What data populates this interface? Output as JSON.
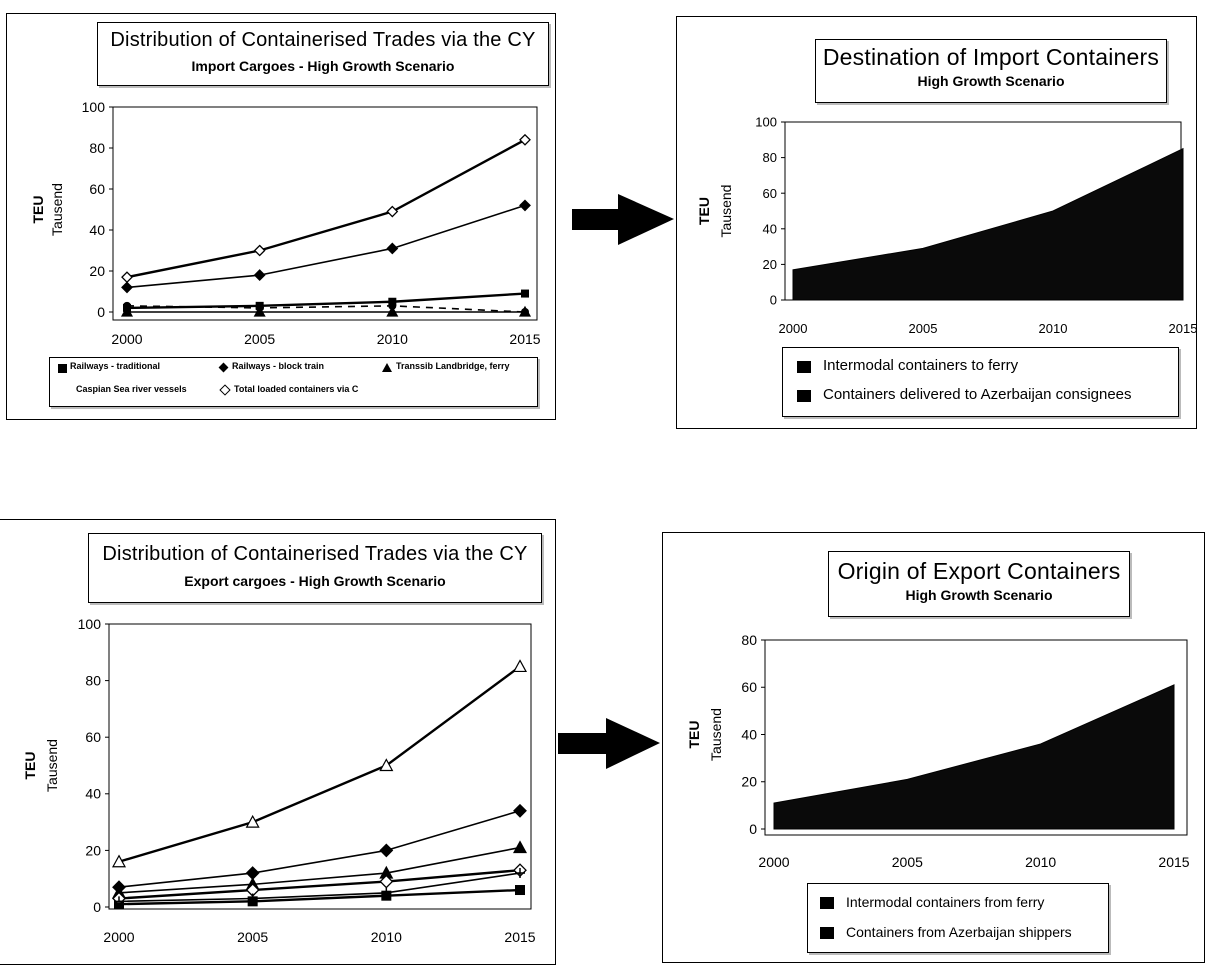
{
  "colors": {
    "ink": "#000000",
    "area": "#0a0a0a",
    "background": "#ffffff"
  },
  "chart_data": [
    {
      "type": "line",
      "title": "Distribution of Containerised Trades via the CY",
      "subtitle": "Import Cargoes - High Growth Scenario",
      "ylabel_top": "TEU",
      "ylabel_bottom": "Tausend",
      "x": [
        2000,
        2005,
        2010,
        2015
      ],
      "ylim": [
        0,
        100
      ],
      "yticks": [
        0,
        20,
        40,
        60,
        80,
        100
      ],
      "series": [
        {
          "name": "Railways - traditional",
          "marker": "square",
          "values": [
            2,
            3,
            5,
            9
          ]
        },
        {
          "name": "Railways - block train",
          "marker": "diamond",
          "values": [
            12,
            18,
            31,
            52
          ]
        },
        {
          "name": "Transsib Landbridge, ferry",
          "marker": "triangle",
          "values": [
            0,
            0,
            0,
            0
          ]
        },
        {
          "name": "Caspian Sea river vessels",
          "marker": "circle",
          "values": [
            3,
            2,
            3,
            0
          ]
        },
        {
          "name": "Total loaded containers via C",
          "marker": "diamond-open",
          "values": [
            17,
            30,
            49,
            84
          ]
        }
      ],
      "legend_position": "bottom",
      "grid": false
    },
    {
      "type": "area",
      "title": "Destination of Import Containers",
      "subtitle": "High Growth Scenario",
      "ylabel_top": "TEU",
      "ylabel_bottom": "Tausend",
      "x": [
        2000,
        2005,
        2010,
        2015
      ],
      "ylim": [
        0,
        100
      ],
      "yticks": [
        0,
        20,
        40,
        60,
        80,
        100
      ],
      "series": [
        {
          "name": "Intermodal containers to ferry",
          "values": [
            0,
            0,
            0,
            0
          ]
        },
        {
          "name": "Containers delivered to Azerbaijan consignees",
          "values": [
            17,
            29,
            50,
            85
          ]
        }
      ],
      "legend_position": "bottom",
      "grid": false
    },
    {
      "type": "line",
      "title": "Distribution of Containerised Trades via the CY",
      "subtitle": "Export cargoes - High Growth Scenario",
      "ylabel_top": "TEU",
      "ylabel_bottom": "Tausend",
      "x": [
        2000,
        2005,
        2010,
        2015
      ],
      "ylim": [
        0,
        100
      ],
      "yticks": [
        0,
        20,
        40,
        60,
        80,
        100
      ],
      "series": [
        {
          "marker": "square",
          "values": [
            1,
            2,
            4,
            6
          ]
        },
        {
          "marker": "diamond",
          "values": [
            7,
            12,
            20,
            34
          ]
        },
        {
          "marker": "triangle",
          "values": [
            5,
            8,
            12,
            21
          ]
        },
        {
          "marker": "diamond-open",
          "values": [
            3,
            6,
            9,
            13
          ]
        },
        {
          "marker": "plus",
          "values": [
            2,
            3,
            5,
            12
          ]
        },
        {
          "marker": "triangle-open",
          "values": [
            16,
            30,
            50,
            85
          ]
        }
      ],
      "legend_position": "none",
      "grid": false
    },
    {
      "type": "area",
      "title": "Origin of Export Containers",
      "subtitle": "High Growth Scenario",
      "ylabel_top": "TEU",
      "ylabel_bottom": "Tausend",
      "x": [
        2000,
        2005,
        2010,
        2015
      ],
      "ylim": [
        0,
        80
      ],
      "yticks": [
        0,
        20,
        40,
        60,
        80
      ],
      "series": [
        {
          "name": "Intermodal containers from ferry",
          "values": [
            0,
            0,
            0,
            0
          ]
        },
        {
          "name": "Containers from Azerbaijan shippers",
          "values": [
            11,
            21,
            36,
            61
          ]
        }
      ],
      "legend_position": "bottom",
      "grid": false
    }
  ]
}
